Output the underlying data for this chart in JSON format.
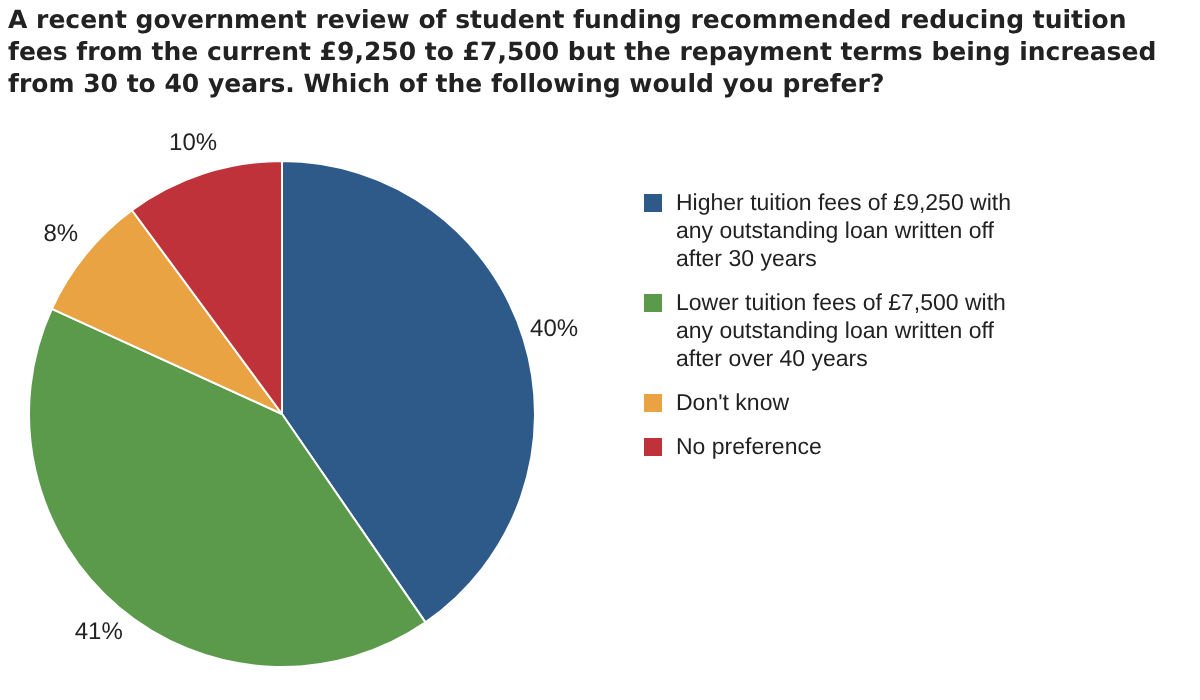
{
  "chart_data": {
    "type": "pie",
    "title": "A recent government review of student funding recommended reducing tuition fees from the current £9,250 to £7,500 but the repayment terms being increased from 30 to 40 years. Which of the following would you prefer?",
    "categories": [
      "Higher tuition fees of £9,250 with any outstanding loan written off after 30 years",
      "Lower tuition fees of £7,500 with any outstanding loan written off after over 40 years",
      "Don't know",
      "No preference"
    ],
    "values": [
      40,
      41,
      8,
      10
    ],
    "colors": [
      "#2e5a8a",
      "#5b9a4a",
      "#e9a343",
      "#c0323a"
    ],
    "value_labels": [
      "40%",
      "41%",
      "8%",
      "10%"
    ],
    "legend": "right"
  }
}
